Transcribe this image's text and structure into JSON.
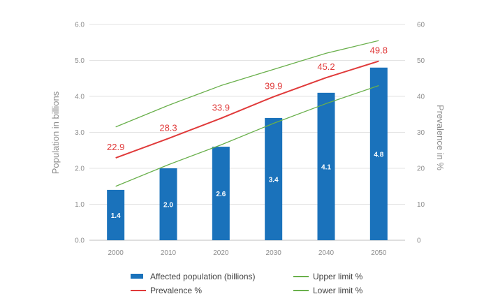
{
  "chart_data": {
    "type": "bar",
    "categories": [
      "2000",
      "2010",
      "2020",
      "2030",
      "2040",
      "2050"
    ],
    "series": [
      {
        "name": "Affected population (billions)",
        "kind": "bar",
        "axis": "left",
        "color": "#1a72bb",
        "values": [
          1.4,
          2.0,
          2.6,
          3.4,
          4.1,
          4.8
        ],
        "value_labels": [
          "1.4",
          "2.0",
          "2.6",
          "3.4",
          "4.1",
          "4.8"
        ]
      },
      {
        "name": "Prevalence %",
        "kind": "line",
        "axis": "right",
        "color": "#e03a3a",
        "values": [
          22.9,
          28.3,
          33.9,
          39.9,
          45.2,
          49.8
        ],
        "value_labels": [
          "22.9",
          "28.3",
          "33.9",
          "39.9",
          "45.2",
          "49.8"
        ]
      },
      {
        "name": "Upper limit %",
        "kind": "line",
        "axis": "right",
        "color": "#6ab04c",
        "values": [
          31.5,
          37.5,
          43.0,
          47.5,
          52.0,
          55.5
        ]
      },
      {
        "name": "Lower limit %",
        "kind": "line",
        "axis": "right",
        "color": "#6ab04c",
        "values": [
          15.0,
          21.0,
          26.5,
          32.5,
          38.0,
          43.0
        ]
      }
    ],
    "ylabel": "Population in billions",
    "y2label": "Prevalence in %",
    "ylim": [
      0,
      6
    ],
    "y2lim": [
      0,
      60
    ],
    "yticks": [
      "0.0",
      "1.0",
      "2.0",
      "3.0",
      "4.0",
      "5.0",
      "6.0"
    ],
    "y2ticks": [
      "0",
      "10",
      "20",
      "30",
      "40",
      "50",
      "60"
    ],
    "grid": true,
    "legend_position": "bottom"
  }
}
